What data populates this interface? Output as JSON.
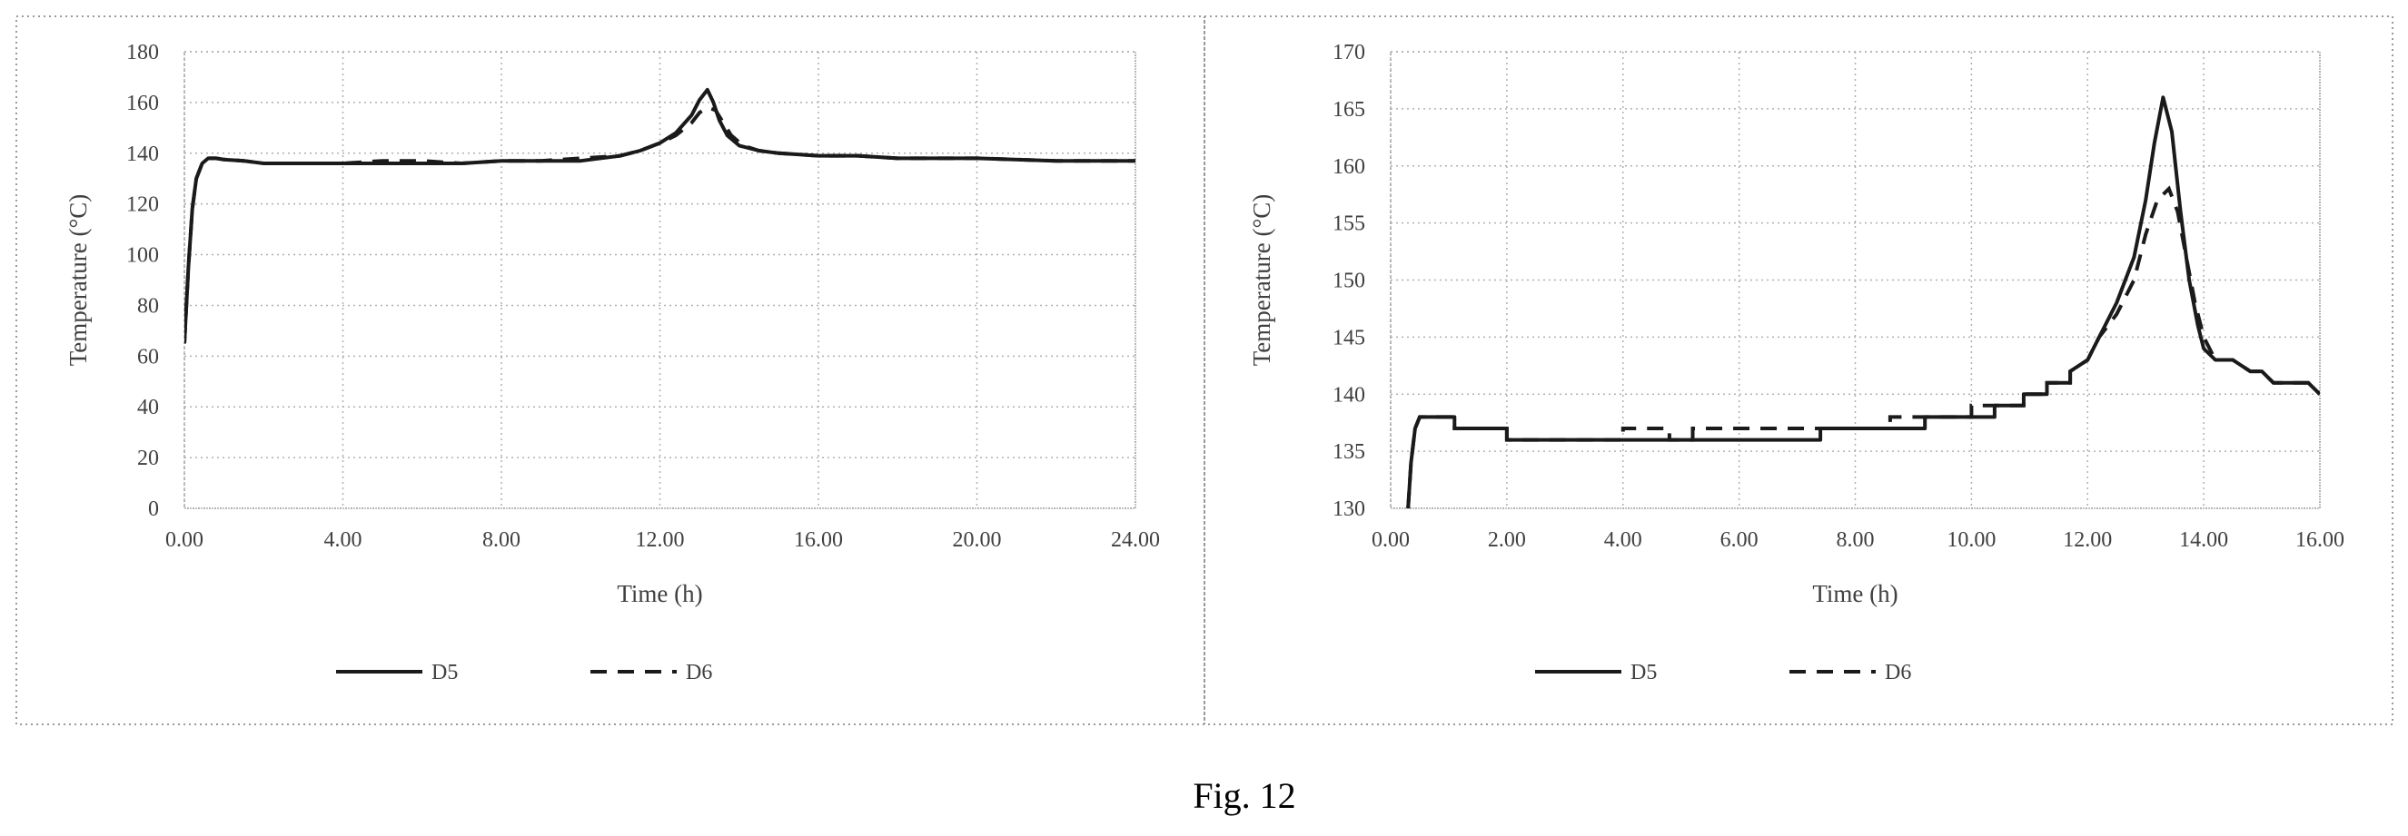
{
  "figure": {
    "caption": "Fig. 12"
  },
  "colors": {
    "line": "#1a1a1a",
    "grid": "#b0b0b0",
    "text": "#404040"
  },
  "chart_data": [
    {
      "type": "line",
      "title": "",
      "xlabel": "Time (h)",
      "ylabel": "Temperature (°C)",
      "xlim": [
        0,
        24
      ],
      "ylim": [
        0,
        180
      ],
      "xticks": [
        "0.00",
        "4.00",
        "8.00",
        "12.00",
        "16.00",
        "20.00",
        "24.00"
      ],
      "yticks": [
        "0",
        "20",
        "40",
        "60",
        "80",
        "100",
        "120",
        "140",
        "160",
        "180"
      ],
      "grid": true,
      "legend": "bottom",
      "series": [
        {
          "name": "D5",
          "style": "solid",
          "x": [
            0,
            0.1,
            0.2,
            0.3,
            0.45,
            0.6,
            0.8,
            1.0,
            1.5,
            2.0,
            3.0,
            4.0,
            5.0,
            6.0,
            7.0,
            8.0,
            9.0,
            10.0,
            11.0,
            11.5,
            12.0,
            12.4,
            12.8,
            13.0,
            13.2,
            13.35,
            13.5,
            13.7,
            14.0,
            14.5,
            15.0,
            16.0,
            17.0,
            18.0,
            20.0,
            22.0,
            24.0
          ],
          "y": [
            65,
            95,
            118,
            130,
            136,
            138,
            138,
            137.5,
            137,
            136,
            136,
            136,
            136,
            136,
            136,
            137,
            137,
            137,
            139,
            141,
            144,
            148,
            155,
            161,
            165,
            160,
            153,
            147,
            143,
            141,
            140,
            139,
            139,
            138,
            138,
            137,
            137
          ]
        },
        {
          "name": "D6",
          "style": "dashed",
          "x": [
            0,
            0.1,
            0.2,
            0.3,
            0.45,
            0.6,
            0.8,
            1.0,
            1.5,
            2.0,
            3.0,
            4.0,
            5.0,
            6.0,
            7.0,
            8.0,
            9.0,
            10.0,
            11.0,
            11.5,
            12.0,
            12.4,
            12.8,
            13.0,
            13.2,
            13.4,
            13.6,
            13.8,
            14.1,
            14.5,
            15.0,
            16.0,
            17.0,
            18.0,
            20.0,
            22.0,
            24.0
          ],
          "y": [
            65,
            95,
            118,
            130,
            136,
            138,
            138,
            137.5,
            137,
            136,
            136,
            136,
            137,
            137,
            136,
            137,
            137,
            138,
            139,
            141,
            144,
            147,
            152,
            156,
            158,
            157,
            152,
            147,
            143,
            141,
            140,
            139,
            139,
            138,
            138,
            137,
            137
          ]
        }
      ]
    },
    {
      "type": "line",
      "title": "",
      "xlabel": "Time (h)",
      "ylabel": "Temperature (°C)",
      "xlim": [
        0,
        16
      ],
      "ylim": [
        130,
        170
      ],
      "xticks": [
        "0.00",
        "2.00",
        "4.00",
        "6.00",
        "8.00",
        "10.00",
        "12.00",
        "14.00",
        "16.00"
      ],
      "yticks": [
        "130",
        "135",
        "140",
        "145",
        "150",
        "155",
        "160",
        "165",
        "170"
      ],
      "grid": true,
      "legend": "bottom",
      "series": [
        {
          "name": "D5",
          "style": "solid",
          "x": [
            0.3,
            0.35,
            0.42,
            0.5,
            0.6,
            1.1,
            1.1,
            2.0,
            2.0,
            7.4,
            7.4,
            9.2,
            9.2,
            10.4,
            10.4,
            10.9,
            10.9,
            11.3,
            11.3,
            11.7,
            11.7,
            12.0,
            12.2,
            12.5,
            12.8,
            13.0,
            13.15,
            13.3,
            13.45,
            13.6,
            13.75,
            13.9,
            14.0,
            14.2,
            14.5,
            14.8,
            15.0,
            15.2,
            15.5,
            15.8,
            16.0
          ],
          "y": [
            130,
            134,
            137,
            138,
            138,
            138,
            137,
            137,
            136,
            136,
            137,
            137,
            138,
            138,
            139,
            139,
            140,
            140,
            141,
            141,
            142,
            143,
            145,
            148,
            152,
            157,
            162,
            166,
            163,
            156,
            150,
            146,
            144,
            143,
            143,
            142,
            142,
            141,
            141,
            141,
            140
          ]
        },
        {
          "name": "D6",
          "style": "dashed",
          "x": [
            0.3,
            0.35,
            0.42,
            0.5,
            0.6,
            1.1,
            1.1,
            2.0,
            2.0,
            4.0,
            4.0,
            4.8,
            4.8,
            5.2,
            5.2,
            7.4,
            7.4,
            8.6,
            8.6,
            10.0,
            10.0,
            10.9,
            10.9,
            11.3,
            11.3,
            11.7,
            11.7,
            12.0,
            12.2,
            12.5,
            12.8,
            13.0,
            13.2,
            13.4,
            13.55,
            13.7,
            13.85,
            14.0,
            14.2,
            14.5,
            14.8,
            15.0,
            15.2,
            15.5,
            15.8,
            16.0
          ],
          "y": [
            130,
            134,
            137,
            138,
            138,
            138,
            137,
            137,
            136,
            136,
            137,
            137,
            136,
            136,
            137,
            137,
            137,
            137,
            138,
            138,
            139,
            139,
            140,
            140,
            141,
            141,
            142,
            143,
            145,
            147,
            150,
            154,
            157,
            158,
            156,
            152,
            148,
            145,
            143,
            143,
            142,
            142,
            141,
            141,
            141,
            140
          ]
        }
      ]
    }
  ]
}
